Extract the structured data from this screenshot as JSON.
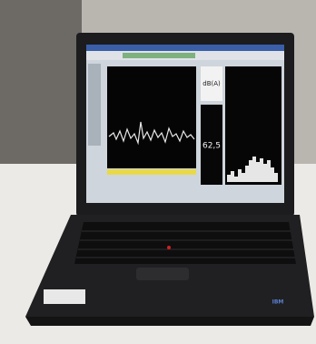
{
  "screen": {
    "unit_label": "dB(A)",
    "level_reading": "62,5"
  },
  "logo": "IBM"
}
